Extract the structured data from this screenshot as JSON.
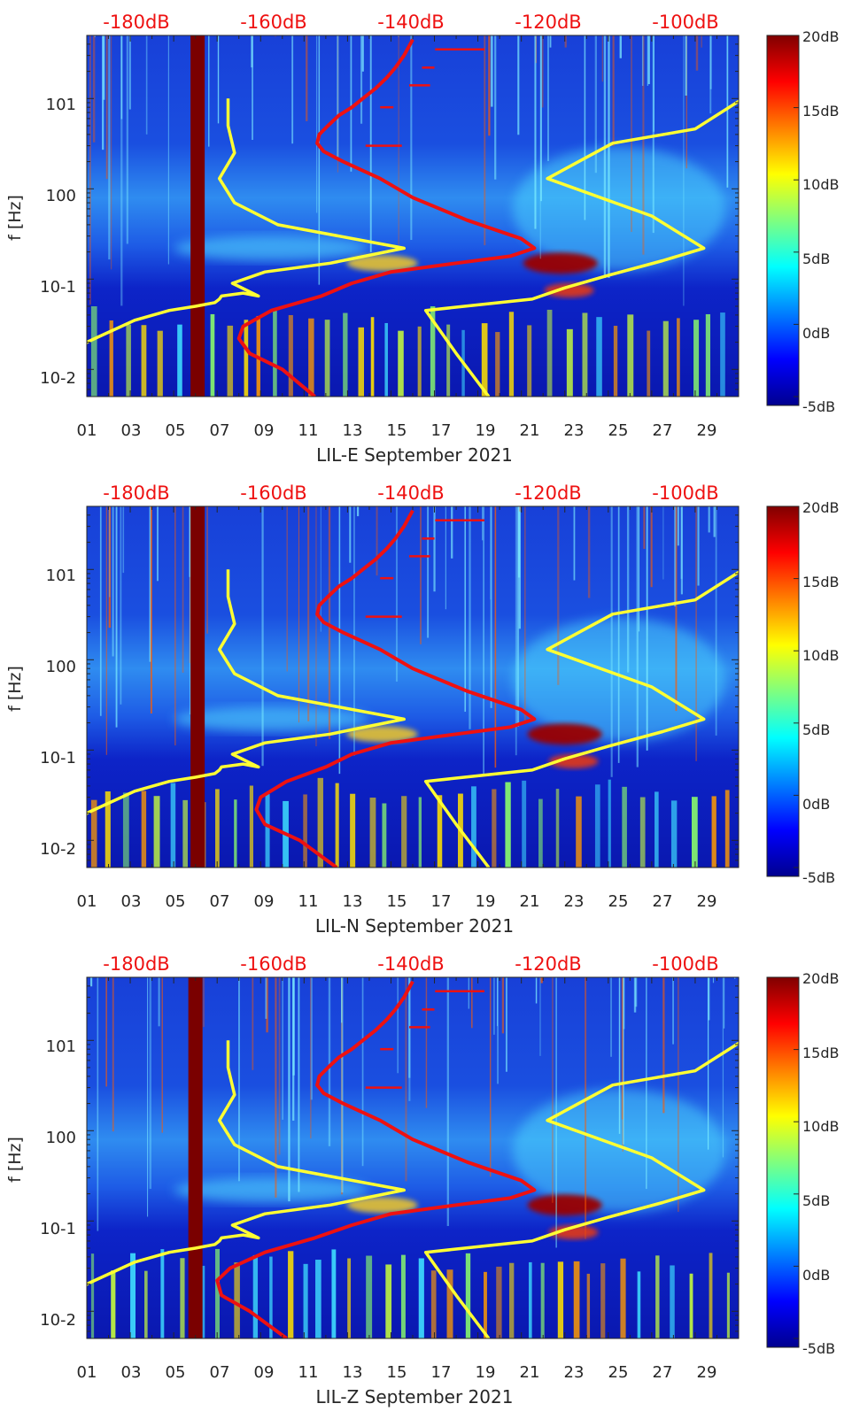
{
  "chart_data": [
    {
      "type": "heatmap",
      "title": "",
      "xlabel": "LIL-E September 2021",
      "ylabel": "f [Hz]",
      "x_ticks": [
        "01",
        "03",
        "05",
        "07",
        "09",
        "11",
        "13",
        "15",
        "17",
        "19",
        "21",
        "23",
        "25",
        "27",
        "29"
      ],
      "y_ticks": [
        "10-2",
        "10-1",
        "100",
        "101"
      ],
      "top_ticks": [
        "-180dB",
        "-160dB",
        "-140dB",
        "-120dB",
        "-100dB"
      ],
      "colorbar_ticks": [
        "20dB",
        "15dB",
        "10dB",
        "5dB",
        "0dB",
        "-5dB"
      ],
      "color_range_db": [
        -5,
        20
      ],
      "xlim_day": [
        1,
        31
      ],
      "ylim_hz": [
        0.005,
        50
      ],
      "dark_band_day": 6.1,
      "hot_spot_day": 22.8,
      "noise_model_low": {
        "color": "#ffff33",
        "day": [
          -1,
          0.3,
          1,
          3.2,
          4.8,
          6.0,
          6.9,
          7.1,
          7.2,
          8.2,
          8.9,
          7.7,
          9.2,
          12.2,
          15.6,
          9.8,
          7.8,
          7.1,
          7.8,
          7.5,
          7.5
        ],
        "f_hz": [
          0.005,
          0.01,
          0.02,
          0.035,
          0.045,
          0.05,
          0.055,
          0.06,
          0.065,
          0.07,
          0.065,
          0.09,
          0.12,
          0.15,
          0.22,
          0.4,
          0.7,
          1.3,
          2.5,
          5,
          10
        ]
      },
      "noise_model_high": {
        "color": "#ffff33",
        "day": [
          19.5,
          18.0,
          16.6,
          21.5,
          23.0,
          25.0,
          27.5,
          29.4,
          27.0,
          22.2,
          25.2,
          29.0,
          31.2
        ],
        "f_hz": [
          0.005,
          0.015,
          0.045,
          0.06,
          0.08,
          0.11,
          0.16,
          0.22,
          0.5,
          1.3,
          3.2,
          4.6,
          10
        ]
      },
      "psd_curve": {
        "color": "#ee1111",
        "day": [
          11.5,
          10.0,
          8.5,
          8.0,
          8.2,
          9.5,
          11.8,
          13.2,
          15.0,
          18.0,
          20.5,
          21.6,
          21.0,
          18.5,
          16.0,
          14.5,
          12.8,
          11.9,
          11.6,
          11.7,
          12.1,
          12.6,
          13.2,
          13.7,
          14.3,
          14.8,
          15.2,
          15.6,
          16.0
        ],
        "f_hz": [
          0.005,
          0.01,
          0.015,
          0.022,
          0.03,
          0.045,
          0.065,
          0.09,
          0.12,
          0.15,
          0.18,
          0.22,
          0.28,
          0.45,
          0.8,
          1.3,
          2.0,
          2.6,
          3.2,
          4.0,
          5.0,
          6.5,
          8.0,
          10,
          13,
          17,
          22,
          30,
          45
        ]
      }
    },
    {
      "type": "heatmap",
      "title": "",
      "xlabel": "LIL-N September 2021",
      "ylabel": "f [Hz]",
      "x_ticks": [
        "01",
        "03",
        "05",
        "07",
        "09",
        "11",
        "13",
        "15",
        "17",
        "19",
        "21",
        "23",
        "25",
        "27",
        "29"
      ],
      "y_ticks": [
        "10-2",
        "10-1",
        "100",
        "101"
      ],
      "top_ticks": [
        "-180dB",
        "-160dB",
        "-140dB",
        "-120dB",
        "-100dB"
      ],
      "colorbar_ticks": [
        "20dB",
        "15dB",
        "10dB",
        "5dB",
        "0dB",
        "-5dB"
      ],
      "color_range_db": [
        -5,
        20
      ],
      "xlim_day": [
        1,
        31
      ],
      "ylim_hz": [
        0.005,
        50
      ],
      "dark_band_day": 6.1,
      "hot_spot_day": 23.0,
      "noise_model_low": {
        "color": "#ffff33",
        "day": [
          -1,
          0.3,
          1,
          3.2,
          4.8,
          6.0,
          6.9,
          7.1,
          7.2,
          8.2,
          8.9,
          7.7,
          9.2,
          12.2,
          15.6,
          9.8,
          7.8,
          7.1,
          7.8,
          7.5,
          7.5
        ],
        "f_hz": [
          0.005,
          0.01,
          0.02,
          0.035,
          0.045,
          0.05,
          0.055,
          0.06,
          0.065,
          0.07,
          0.065,
          0.09,
          0.12,
          0.15,
          0.22,
          0.4,
          0.7,
          1.3,
          2.5,
          5,
          10
        ]
      },
      "noise_model_high": {
        "color": "#ffff33",
        "day": [
          19.5,
          18.0,
          16.6,
          21.5,
          23.0,
          25.0,
          27.5,
          29.4,
          27.0,
          22.2,
          25.2,
          29.0,
          31.2
        ],
        "f_hz": [
          0.005,
          0.015,
          0.045,
          0.06,
          0.08,
          0.11,
          0.16,
          0.22,
          0.5,
          1.3,
          3.2,
          4.6,
          10
        ]
      },
      "psd_curve": {
        "color": "#ee1111",
        "day": [
          12.5,
          10.8,
          9.2,
          8.8,
          9.0,
          10.2,
          12.0,
          13.2,
          15.0,
          18.0,
          20.5,
          21.6,
          21.0,
          18.5,
          16.0,
          14.5,
          12.8,
          11.9,
          11.6,
          11.7,
          12.1,
          12.6,
          13.2,
          13.7,
          14.3,
          14.8,
          15.2,
          15.6,
          16.0
        ],
        "f_hz": [
          0.005,
          0.01,
          0.015,
          0.022,
          0.03,
          0.045,
          0.065,
          0.09,
          0.12,
          0.15,
          0.18,
          0.22,
          0.28,
          0.45,
          0.8,
          1.3,
          2.0,
          2.6,
          3.2,
          4.0,
          5.0,
          6.5,
          8.0,
          10,
          13,
          17,
          22,
          30,
          45
        ]
      }
    },
    {
      "type": "heatmap",
      "title": "",
      "xlabel": "LIL-Z September 2021",
      "ylabel": "f [Hz]",
      "x_ticks": [
        "01",
        "03",
        "05",
        "07",
        "09",
        "11",
        "13",
        "15",
        "17",
        "19",
        "21",
        "23",
        "25",
        "27",
        "29"
      ],
      "y_ticks": [
        "10-2",
        "10-1",
        "100",
        "101"
      ],
      "top_ticks": [
        "-180dB",
        "-160dB",
        "-140dB",
        "-120dB",
        "-100dB"
      ],
      "colorbar_ticks": [
        "20dB",
        "15dB",
        "10dB",
        "5dB",
        "0dB",
        "-5dB"
      ],
      "color_range_db": [
        -5,
        20
      ],
      "xlim_day": [
        1,
        31
      ],
      "ylim_hz": [
        0.005,
        50
      ],
      "dark_band_day": 6.0,
      "hot_spot_day": 23.0,
      "noise_model_low": {
        "color": "#ffff33",
        "day": [
          -1,
          0.3,
          1,
          3.2,
          4.8,
          6.0,
          6.9,
          7.1,
          7.2,
          8.2,
          8.9,
          7.7,
          9.2,
          12.2,
          15.6,
          9.8,
          7.8,
          7.1,
          7.8,
          7.5,
          7.5
        ],
        "f_hz": [
          0.005,
          0.01,
          0.02,
          0.035,
          0.045,
          0.05,
          0.055,
          0.06,
          0.065,
          0.07,
          0.065,
          0.09,
          0.12,
          0.15,
          0.22,
          0.4,
          0.7,
          1.3,
          2.5,
          5,
          10
        ]
      },
      "noise_model_high": {
        "color": "#ffff33",
        "day": [
          19.5,
          18.0,
          16.6,
          21.5,
          23.0,
          25.0,
          27.5,
          29.4,
          27.0,
          22.2,
          25.2,
          29.0,
          31.2
        ],
        "f_hz": [
          0.005,
          0.015,
          0.045,
          0.06,
          0.08,
          0.11,
          0.16,
          0.22,
          0.5,
          1.3,
          3.2,
          4.6,
          10
        ]
      },
      "psd_curve": {
        "color": "#ee1111",
        "day": [
          10.2,
          8.5,
          7.2,
          7.0,
          7.6,
          9.2,
          11.5,
          13.2,
          15.0,
          18.0,
          20.5,
          21.6,
          21.0,
          18.5,
          16.0,
          14.5,
          12.8,
          11.9,
          11.6,
          11.7,
          12.1,
          12.6,
          13.2,
          13.7,
          14.3,
          14.8,
          15.2,
          15.6,
          16.0
        ],
        "f_hz": [
          0.005,
          0.01,
          0.015,
          0.022,
          0.03,
          0.045,
          0.065,
          0.09,
          0.12,
          0.15,
          0.18,
          0.22,
          0.28,
          0.45,
          0.8,
          1.3,
          2.0,
          2.6,
          3.2,
          4.0,
          5.0,
          6.5,
          8.0,
          10,
          13,
          17,
          22,
          30,
          45
        ]
      }
    }
  ]
}
